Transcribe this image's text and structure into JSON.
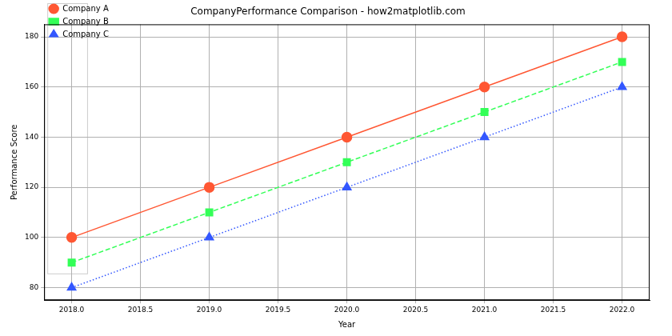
{
  "chart_data": {
    "type": "line",
    "title": "CompanyPerformance Comparison - how2matplotlib.com",
    "x_label": "Year",
    "y_label": "Performance Score",
    "x": [
      2018,
      2019,
      2020,
      2021,
      2022
    ],
    "series": [
      {
        "name": "Company A",
        "color": "#ff5733",
        "marker": "circle",
        "line_style": "solid",
        "values": [
          100,
          120,
          140,
          160,
          180
        ]
      },
      {
        "name": "Company B",
        "color": "#33ff57",
        "marker": "square",
        "line_style": "dashed",
        "values": [
          90,
          110,
          130,
          150,
          170
        ]
      },
      {
        "name": "Company C",
        "color": "#3357ff",
        "marker": "triangle",
        "line_style": "dotted",
        "values": [
          80,
          100,
          120,
          140,
          160
        ]
      }
    ],
    "xlim": [
      2017.8,
      2022.2
    ],
    "xticks": [
      {
        "value": 2018,
        "label": "2018.0"
      },
      {
        "value": 2018.5,
        "label": "2018.5"
      },
      {
        "value": 2019,
        "label": "2019.0"
      },
      {
        "value": 2019.5,
        "label": "2019.5"
      },
      {
        "value": 2020,
        "label": "2020.0"
      },
      {
        "value": 2020.5,
        "label": "2020.5"
      },
      {
        "value": 2021,
        "label": "2021.0"
      },
      {
        "value": 2021.5,
        "label": "2021.5"
      },
      {
        "value": 2022,
        "label": "2022.0"
      }
    ],
    "ylim": [
      75,
      185
    ],
    "yticks": [
      80,
      100,
      120,
      140,
      160,
      180
    ],
    "grid": true,
    "legend": "upper left"
  }
}
